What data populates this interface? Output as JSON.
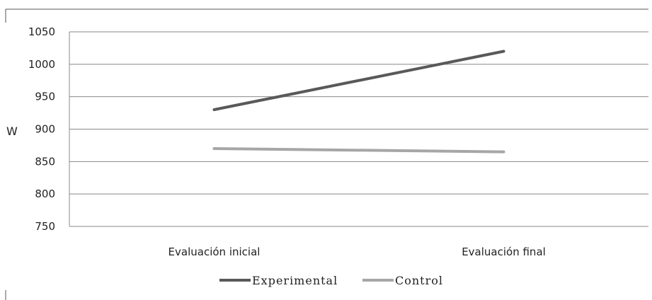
{
  "chart_data": {
    "type": "line",
    "categories": [
      "Evaluación inicial",
      "Evaluación final"
    ],
    "series": [
      {
        "name": "Experimental",
        "values": [
          930,
          1020
        ],
        "color": "#595959"
      },
      {
        "name": "Control",
        "values": [
          870,
          865
        ],
        "color": "#a6a6a6"
      }
    ],
    "ylabel": "W",
    "ylim": [
      750,
      1050
    ],
    "yticks": [
      750,
      800,
      850,
      900,
      950,
      1000,
      1050
    ],
    "grid": true,
    "legend_position": "bottom"
  }
}
